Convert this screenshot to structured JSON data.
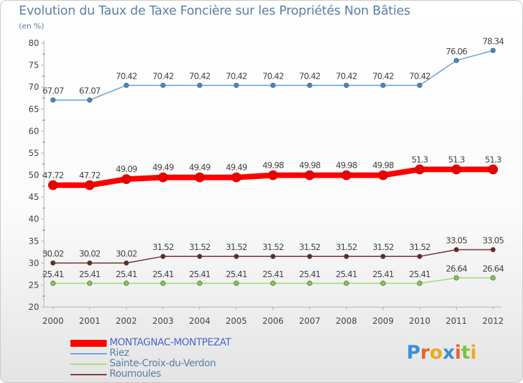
{
  "chart_data": {
    "type": "line",
    "title": "Evolution du Taux de Taxe Foncière sur les Propriétés Non Bâties",
    "ylabel": "(en %)",
    "xlabel": "",
    "categories": [
      "2000",
      "2001",
      "2002",
      "2003",
      "2004",
      "2005",
      "2006",
      "2007",
      "2008",
      "2009",
      "2010",
      "2011",
      "2012"
    ],
    "ylim": [
      20,
      80
    ],
    "yticks": [
      20,
      25,
      30,
      35,
      40,
      45,
      50,
      55,
      60,
      65,
      70,
      75,
      80
    ],
    "grid": false,
    "legend_position": "bottom-left",
    "series": [
      {
        "name": "MONTAGNAC-MONTPEZAT",
        "color": "#ff0000",
        "marker_color": "#ee0000",
        "values": [
          47.72,
          47.72,
          49.09,
          49.49,
          49.49,
          49.49,
          49.98,
          49.98,
          49.98,
          49.98,
          51.3,
          51.3,
          51.3
        ],
        "labels": [
          "47.72",
          "47.72",
          "49.09",
          "49.49",
          "49.49",
          "49.49",
          "49.98",
          "49.98",
          "49.98",
          "49.98",
          "51.3",
          "51.3",
          "51.3"
        ]
      },
      {
        "name": "Riez",
        "color": "#6fa3d8",
        "marker_color": "#3d8ad0",
        "values": [
          67.07,
          67.07,
          70.42,
          70.42,
          70.42,
          70.42,
          70.42,
          70.42,
          70.42,
          70.42,
          70.42,
          76.06,
          78.34
        ],
        "labels": [
          "67.07",
          "67.07",
          "70.42",
          "70.42",
          "70.42",
          "70.42",
          "70.42",
          "70.42",
          "70.42",
          "70.42",
          "70.42",
          "76.06",
          "78.34"
        ]
      },
      {
        "name": "Sainte-Croix-du-Verdon",
        "color": "#a6dc7a",
        "marker_color": "#7ccf3f",
        "values": [
          25.41,
          25.41,
          25.41,
          25.41,
          25.41,
          25.41,
          25.41,
          25.41,
          25.41,
          25.41,
          25.41,
          26.64,
          26.64
        ],
        "labels": [
          "25.41",
          "25.41",
          "25.41",
          "25.41",
          "25.41",
          "25.41",
          "25.41",
          "25.41",
          "25.41",
          "25.41",
          "25.41",
          "26.64",
          "26.64"
        ]
      },
      {
        "name": "Roumoules",
        "color": "#7a3a3a",
        "marker_color": "#6b2424",
        "values": [
          30.02,
          30.02,
          30.02,
          31.52,
          31.52,
          31.52,
          31.52,
          31.52,
          31.52,
          31.52,
          31.52,
          33.05,
          33.05
        ],
        "labels": [
          "30.02",
          "30.02",
          "30.02",
          "31.52",
          "31.52",
          "31.52",
          "31.52",
          "31.52",
          "31.52",
          "31.52",
          "31.52",
          "33.05",
          "33.05"
        ]
      }
    ]
  },
  "logo": {
    "letters": [
      "P",
      "r",
      "o",
      "x",
      "i",
      "t",
      "i"
    ],
    "colors": [
      "#3b8fd9",
      "#e8632a",
      "#f0a81c",
      "#3b8fd9",
      "#e8632a",
      "#7cc242",
      "#f0a81c"
    ]
  }
}
